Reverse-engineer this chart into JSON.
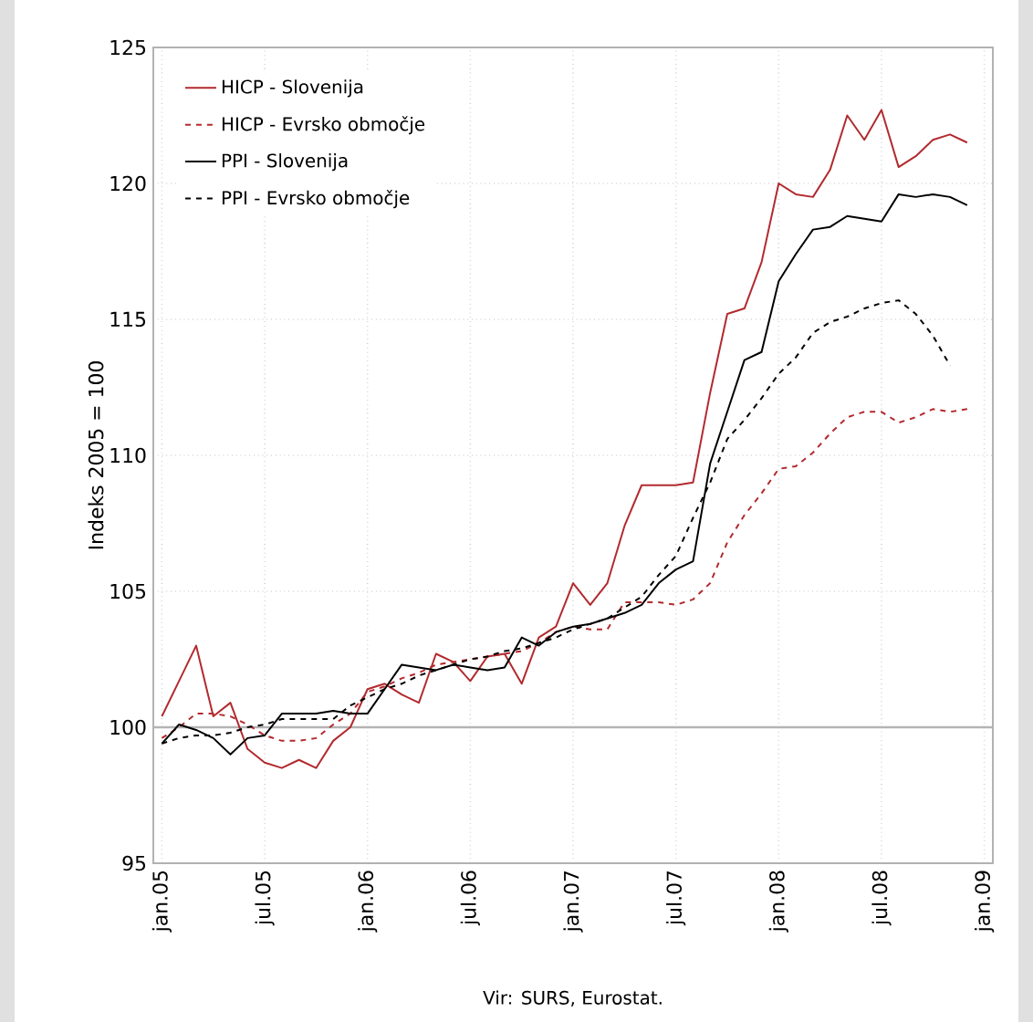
{
  "chart_data": {
    "type": "line",
    "ylabel": "Indeks 2005 = 100",
    "annotations": [
      "Vir: SURS, Eurostat."
    ],
    "x": [
      "2005-01",
      "2005-02",
      "2005-03",
      "2005-04",
      "2005-05",
      "2005-06",
      "2005-07",
      "2005-08",
      "2005-09",
      "2005-10",
      "2005-11",
      "2005-12",
      "2006-01",
      "2006-02",
      "2006-03",
      "2006-04",
      "2006-05",
      "2006-06",
      "2006-07",
      "2006-08",
      "2006-09",
      "2006-10",
      "2006-11",
      "2006-12",
      "2007-01",
      "2007-02",
      "2007-03",
      "2007-04",
      "2007-05",
      "2007-06",
      "2007-07",
      "2007-08",
      "2007-09",
      "2007-10",
      "2007-11",
      "2007-12",
      "2008-01",
      "2008-02",
      "2008-03",
      "2008-04",
      "2008-05",
      "2008-06",
      "2008-07",
      "2008-08",
      "2008-09",
      "2008-10",
      "2008-11",
      "2008-12"
    ],
    "series": [
      {
        "name": "HICP - Slovenija",
        "color": "#b22a2e",
        "line_style": "solid",
        "values": [
          100.4,
          101.7,
          103.0,
          100.4,
          100.9,
          99.2,
          98.7,
          98.5,
          98.8,
          98.5,
          99.5,
          100.0,
          101.4,
          101.6,
          101.2,
          100.9,
          102.7,
          102.4,
          101.7,
          102.6,
          102.7,
          101.6,
          103.3,
          103.7,
          105.3,
          104.5,
          105.3,
          107.4,
          108.9,
          108.9,
          108.9,
          109.0,
          112.3,
          115.2,
          115.4,
          117.1,
          120.0,
          119.6,
          119.5,
          120.5,
          122.5,
          121.6,
          122.7,
          120.6,
          121.0,
          121.6,
          121.8,
          121.5
        ]
      },
      {
        "name": "HICP - Evrsko območje",
        "color": "#b22a2e",
        "line_style": "dashed",
        "values": [
          99.6,
          100.0,
          100.5,
          100.5,
          100.4,
          100.1,
          99.7,
          99.5,
          99.5,
          99.6,
          100.1,
          100.5,
          101.3,
          101.5,
          101.8,
          102.0,
          102.3,
          102.4,
          102.5,
          102.6,
          102.7,
          102.8,
          103.1,
          103.5,
          103.7,
          103.6,
          103.6,
          104.6,
          104.6,
          104.6,
          104.5,
          104.7,
          105.3,
          106.8,
          107.8,
          108.6,
          109.5,
          109.6,
          110.1,
          110.8,
          111.4,
          111.6,
          111.6,
          111.2,
          111.4,
          111.7,
          111.6,
          111.7
        ]
      },
      {
        "name": "PPI - Slovenija",
        "color": "#000000",
        "line_style": "solid",
        "values": [
          99.4,
          100.1,
          99.9,
          99.6,
          99.0,
          99.6,
          99.7,
          100.5,
          100.5,
          100.5,
          100.6,
          100.5,
          100.5,
          101.4,
          102.3,
          102.2,
          102.1,
          102.3,
          102.2,
          102.1,
          102.2,
          103.3,
          103.0,
          103.5,
          103.7,
          103.8,
          104.0,
          104.2,
          104.5,
          105.3,
          105.8,
          106.1,
          109.7,
          111.6,
          113.5,
          113.8,
          116.4,
          117.4,
          118.3,
          118.4,
          118.8,
          118.7,
          118.6,
          119.6,
          119.5,
          119.6,
          119.5,
          119.2
        ]
      },
      {
        "name": "PPI - Evrsko območje",
        "color": "#000000",
        "line_style": "dashed",
        "values": [
          99.4,
          99.6,
          99.7,
          99.7,
          99.8,
          100.0,
          100.1,
          100.3,
          100.3,
          100.3,
          100.3,
          100.8,
          101.1,
          101.4,
          101.6,
          101.9,
          102.1,
          102.3,
          102.5,
          102.6,
          102.8,
          102.9,
          103.1,
          103.3,
          103.6,
          103.8,
          104.0,
          104.4,
          104.8,
          105.6,
          106.3,
          107.7,
          109.0,
          110.6,
          111.3,
          112.1,
          113.0,
          113.6,
          114.5,
          114.9,
          115.1,
          115.4,
          115.6,
          115.7,
          115.2,
          114.4,
          113.3,
          null
        ]
      }
    ],
    "xlim": [
      "2004-12-16",
      "2009-01-16"
    ],
    "xticks": [
      {
        "value": "2005-01",
        "label": "jan.05"
      },
      {
        "value": "2005-07",
        "label": "jul.05"
      },
      {
        "value": "2006-01",
        "label": "jan.06"
      },
      {
        "value": "2006-07",
        "label": "jul.06"
      },
      {
        "value": "2007-01",
        "label": "jan.07"
      },
      {
        "value": "2007-07",
        "label": "jul.07"
      },
      {
        "value": "2008-01",
        "label": "jan.08"
      },
      {
        "value": "2008-07",
        "label": "jul.08"
      },
      {
        "value": "2009-01",
        "label": "jan.09"
      }
    ],
    "ylim": [
      95,
      125
    ],
    "yticks": [
      95,
      100,
      105,
      110,
      115,
      120,
      125
    ],
    "ref_lines": [
      {
        "axis": "y",
        "value": 100,
        "color": "#b4b4b4"
      }
    ],
    "grid": true,
    "legend": "top left",
    "marker": "none"
  }
}
